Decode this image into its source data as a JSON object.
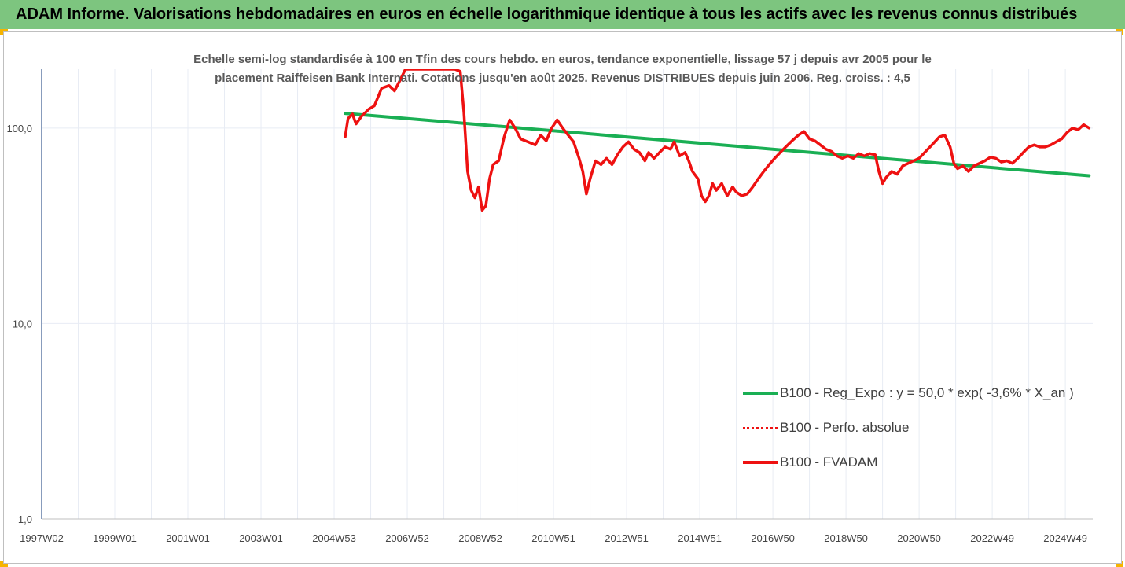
{
  "header": {
    "title": "ADAM Informe. Valorisations hebdomadaires en euros en échelle logarithmique identique à tous les actifs avec les revenus connus distribués"
  },
  "colors": {
    "header_bg": "#7dc57f",
    "regression": "#1aaf54",
    "series": "#ee1111",
    "grid": "#e8ecf4",
    "axis": "#3a5a90",
    "accent": "#f6b400"
  },
  "chart_data": {
    "type": "line",
    "title_line1": "Echelle semi-log standardisée à 100 en Tfin des cours hebdo. en euros, tendance exponentielle, lissage 57 j depuis avr 2005 pour le",
    "title_line2": "placement Raiffeisen Bank Internati. Cotations jusqu'en août 2025. Revenus DISTRIBUES depuis juin 2006. Reg. croiss. : 4,5",
    "y_scale": "log",
    "ylim": [
      1,
      200
    ],
    "xlim": [
      1997.0,
      2025.75
    ],
    "y_ticks": [
      {
        "value": 100,
        "label": "100,0"
      },
      {
        "value": 10,
        "label": "10,0"
      },
      {
        "value": 1,
        "label": "1,0"
      }
    ],
    "x_ticks": [
      {
        "value": 1997.0,
        "label": "1997W02"
      },
      {
        "value": 1999.0,
        "label": "1999W01"
      },
      {
        "value": 2001.0,
        "label": "2001W01"
      },
      {
        "value": 2003.0,
        "label": "2003W01"
      },
      {
        "value": 2005.0,
        "label": "2004W53"
      },
      {
        "value": 2007.0,
        "label": "2006W52"
      },
      {
        "value": 2009.0,
        "label": "2008W52"
      },
      {
        "value": 2011.0,
        "label": "2010W51"
      },
      {
        "value": 2013.0,
        "label": "2012W51"
      },
      {
        "value": 2015.0,
        "label": "2014W51"
      },
      {
        "value": 2017.0,
        "label": "2016W50"
      },
      {
        "value": 2019.0,
        "label": "2018W50"
      },
      {
        "value": 2021.0,
        "label": "2020W50"
      },
      {
        "value": 2023.0,
        "label": "2022W49"
      },
      {
        "value": 2025.0,
        "label": "2024W49"
      }
    ],
    "legend_position": "bottom-right",
    "grid": true,
    "series": [
      {
        "name": "B100 - Reg_Expo : y = 50,0 * exp( -3,6% * X_an )",
        "color": "#1aaf54",
        "style": "solid",
        "points": [
          [
            2005.3,
            119
          ],
          [
            2025.65,
            57
          ]
        ]
      },
      {
        "name": "B100 - Perfo. absolue",
        "color": "#ee1111",
        "style": "dotted",
        "points": []
      },
      {
        "name": "B100 - FVADAM",
        "color": "#ee1111",
        "style": "solid",
        "points": [
          [
            2005.3,
            90
          ],
          [
            2005.38,
            112
          ],
          [
            2005.5,
            118
          ],
          [
            2005.6,
            105
          ],
          [
            2005.75,
            115
          ],
          [
            2005.95,
            125
          ],
          [
            2006.1,
            130
          ],
          [
            2006.3,
            160
          ],
          [
            2006.5,
            165
          ],
          [
            2006.65,
            155
          ],
          [
            2006.8,
            175
          ],
          [
            2006.95,
            200
          ],
          [
            2007.15,
            200
          ],
          [
            2008.3,
            200
          ],
          [
            2008.45,
            195
          ],
          [
            2008.55,
            120
          ],
          [
            2008.65,
            60
          ],
          [
            2008.75,
            48
          ],
          [
            2008.85,
            44
          ],
          [
            2008.95,
            50
          ],
          [
            2009.05,
            38
          ],
          [
            2009.15,
            40
          ],
          [
            2009.25,
            55
          ],
          [
            2009.35,
            65
          ],
          [
            2009.5,
            68
          ],
          [
            2009.65,
            90
          ],
          [
            2009.8,
            110
          ],
          [
            2009.95,
            100
          ],
          [
            2010.1,
            88
          ],
          [
            2010.3,
            85
          ],
          [
            2010.5,
            82
          ],
          [
            2010.65,
            92
          ],
          [
            2010.8,
            86
          ],
          [
            2010.95,
            100
          ],
          [
            2011.1,
            110
          ],
          [
            2011.25,
            100
          ],
          [
            2011.4,
            92
          ],
          [
            2011.55,
            85
          ],
          [
            2011.7,
            70
          ],
          [
            2011.8,
            60
          ],
          [
            2011.9,
            46
          ],
          [
            2012.0,
            55
          ],
          [
            2012.15,
            68
          ],
          [
            2012.3,
            65
          ],
          [
            2012.45,
            70
          ],
          [
            2012.6,
            65
          ],
          [
            2012.75,
            73
          ],
          [
            2012.9,
            80
          ],
          [
            2013.05,
            85
          ],
          [
            2013.2,
            78
          ],
          [
            2013.35,
            75
          ],
          [
            2013.5,
            68
          ],
          [
            2013.6,
            75
          ],
          [
            2013.75,
            70
          ],
          [
            2013.9,
            75
          ],
          [
            2014.05,
            80
          ],
          [
            2014.2,
            78
          ],
          [
            2014.3,
            85
          ],
          [
            2014.45,
            72
          ],
          [
            2014.6,
            75
          ],
          [
            2014.7,
            68
          ],
          [
            2014.8,
            60
          ],
          [
            2014.95,
            55
          ],
          [
            2015.05,
            45
          ],
          [
            2015.15,
            42
          ],
          [
            2015.25,
            45
          ],
          [
            2015.35,
            52
          ],
          [
            2015.45,
            48
          ],
          [
            2015.6,
            52
          ],
          [
            2015.75,
            45
          ],
          [
            2015.9,
            50
          ],
          [
            2016.0,
            47
          ],
          [
            2016.15,
            45
          ],
          [
            2016.3,
            46
          ],
          [
            2016.45,
            50
          ],
          [
            2016.6,
            55
          ],
          [
            2016.75,
            60
          ],
          [
            2016.9,
            65
          ],
          [
            2017.05,
            70
          ],
          [
            2017.2,
            75
          ],
          [
            2017.35,
            80
          ],
          [
            2017.55,
            87
          ],
          [
            2017.7,
            92
          ],
          [
            2017.85,
            96
          ],
          [
            2018.0,
            88
          ],
          [
            2018.15,
            86
          ],
          [
            2018.3,
            82
          ],
          [
            2018.45,
            78
          ],
          [
            2018.6,
            76
          ],
          [
            2018.75,
            72
          ],
          [
            2018.9,
            70
          ],
          [
            2019.05,
            72
          ],
          [
            2019.2,
            70
          ],
          [
            2019.35,
            74
          ],
          [
            2019.5,
            72
          ],
          [
            2019.65,
            74
          ],
          [
            2019.8,
            73
          ],
          [
            2019.9,
            60
          ],
          [
            2020.0,
            52
          ],
          [
            2020.1,
            56
          ],
          [
            2020.25,
            60
          ],
          [
            2020.4,
            58
          ],
          [
            2020.55,
            64
          ],
          [
            2020.7,
            66
          ],
          [
            2020.85,
            68
          ],
          [
            2021.0,
            70
          ],
          [
            2021.15,
            75
          ],
          [
            2021.35,
            82
          ],
          [
            2021.55,
            90
          ],
          [
            2021.7,
            92
          ],
          [
            2021.85,
            80
          ],
          [
            2021.95,
            66
          ],
          [
            2022.05,
            62
          ],
          [
            2022.2,
            64
          ],
          [
            2022.35,
            60
          ],
          [
            2022.5,
            64
          ],
          [
            2022.65,
            66
          ],
          [
            2022.8,
            68
          ],
          [
            2022.95,
            71
          ],
          [
            2023.1,
            70
          ],
          [
            2023.25,
            67
          ],
          [
            2023.4,
            68
          ],
          [
            2023.55,
            66
          ],
          [
            2023.7,
            70
          ],
          [
            2023.85,
            75
          ],
          [
            2024.0,
            80
          ],
          [
            2024.15,
            82
          ],
          [
            2024.3,
            80
          ],
          [
            2024.45,
            80
          ],
          [
            2024.6,
            82
          ],
          [
            2024.75,
            85
          ],
          [
            2024.9,
            88
          ],
          [
            2025.05,
            95
          ],
          [
            2025.2,
            100
          ],
          [
            2025.35,
            98
          ],
          [
            2025.5,
            104
          ],
          [
            2025.65,
            100
          ]
        ]
      }
    ]
  }
}
